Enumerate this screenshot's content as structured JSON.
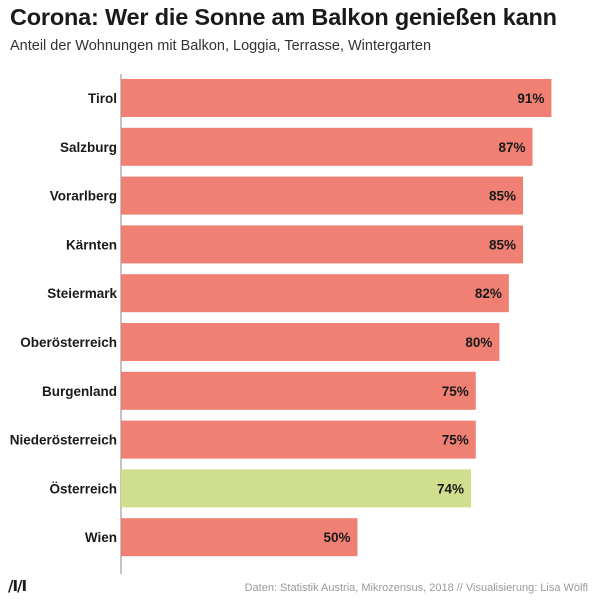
{
  "header": {
    "title": "Corona: Wer die Sonne am Balkon genießen kann",
    "subtitle": "Anteil der Wohnungen mit Balkon, Loggia, Terrasse, Wintergarten"
  },
  "footer": {
    "logo": "/I/I",
    "source": "Daten: Statistik Austria, Mikrozensus, 2018 // Visualisierung: Lisa Wölfl"
  },
  "chart_data": {
    "type": "bar",
    "orientation": "horizontal",
    "title": "Corona: Wer die Sonne am Balkon genießen kann",
    "subtitle": "Anteil der Wohnungen mit Balkon, Loggia, Terrasse, Wintergarten",
    "xlabel": "",
    "ylabel": "",
    "xlim": [
      0,
      100
    ],
    "unit": "%",
    "categories": [
      "Tirol",
      "Salzburg",
      "Vorarlberg",
      "Kärnten",
      "Steiermark",
      "Oberösterreich",
      "Burgenland",
      "Niederösterreich",
      "Österreich",
      "Wien"
    ],
    "values": [
      91,
      87,
      85,
      85,
      82,
      80,
      75,
      75,
      74,
      50
    ],
    "labels": [
      "91%",
      "87%",
      "85%",
      "85%",
      "82%",
      "80%",
      "75%",
      "75%",
      "74%",
      "50%"
    ],
    "highlight": "Österreich",
    "colors": {
      "bar": "#ef8073",
      "highlight": "#d0df8d",
      "axis": "#888888",
      "label": "#1a1a1a"
    }
  }
}
